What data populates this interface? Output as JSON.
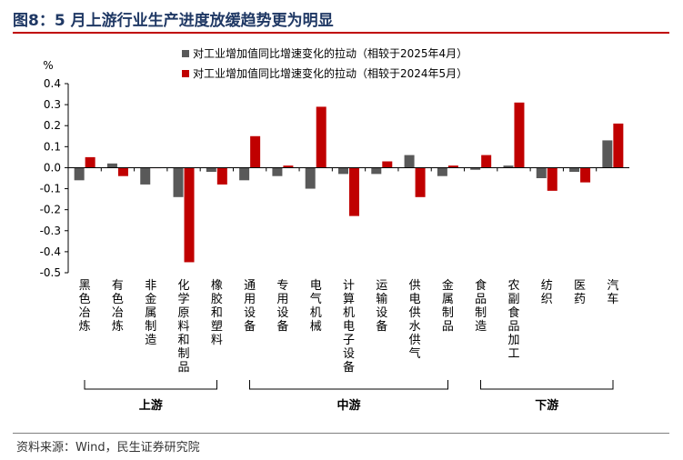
{
  "header": {
    "title": "图8：5 月上游行业生产进度放缓趋势更为明显"
  },
  "footer": {
    "source": "资料来源：Wind，民生证券研究院"
  },
  "colors": {
    "series1": "#595959",
    "series2": "#c00000",
    "title": "#1f3864",
    "rule": "#c00000"
  },
  "chart_data": {
    "type": "bar",
    "unit_label": "%",
    "ylim": [
      -0.5,
      0.4
    ],
    "yticks": [
      "0.4",
      "0.3",
      "0.2",
      "0.1",
      "0.0",
      "-0.1",
      "-0.2",
      "-0.3",
      "-0.4",
      "-0.5"
    ],
    "ytick_values": [
      0.4,
      0.3,
      0.2,
      0.1,
      0.0,
      -0.1,
      -0.2,
      -0.3,
      -0.4,
      -0.5
    ],
    "legend_position": "top-center",
    "grid": false,
    "categories": [
      "黑色冶炼",
      "有色冶炼",
      "非金属制造",
      "化学原料和制品",
      "橡胶和塑料",
      "通用设备",
      "专用设备",
      "电气机械",
      "计算机电子设备",
      "运输设备",
      "供电供水供气",
      "金属制品",
      "食品制造",
      "农副食品加工",
      "纺织",
      "医药",
      "汽车"
    ],
    "series": [
      {
        "name": "对工业增加值同比增速变化的拉动（相较于2025年4月）",
        "values": [
          -0.06,
          0.02,
          -0.08,
          -0.14,
          -0.02,
          -0.06,
          -0.04,
          -0.1,
          -0.03,
          -0.03,
          0.06,
          -0.04,
          -0.01,
          0.01,
          -0.05,
          -0.02,
          0.13
        ]
      },
      {
        "name": "对工业增加值同比增速变化的拉动（相较于2024年5月）",
        "values": [
          0.05,
          -0.04,
          0.0,
          -0.45,
          -0.08,
          0.15,
          0.01,
          0.29,
          -0.23,
          0.03,
          -0.14,
          0.01,
          0.06,
          0.31,
          -0.11,
          -0.07,
          0.21
        ]
      }
    ],
    "groups": [
      {
        "label": "上游",
        "start": 0,
        "end": 4
      },
      {
        "label": "中游",
        "start": 5,
        "end": 11
      },
      {
        "label": "下游",
        "start": 12,
        "end": 16
      }
    ]
  }
}
